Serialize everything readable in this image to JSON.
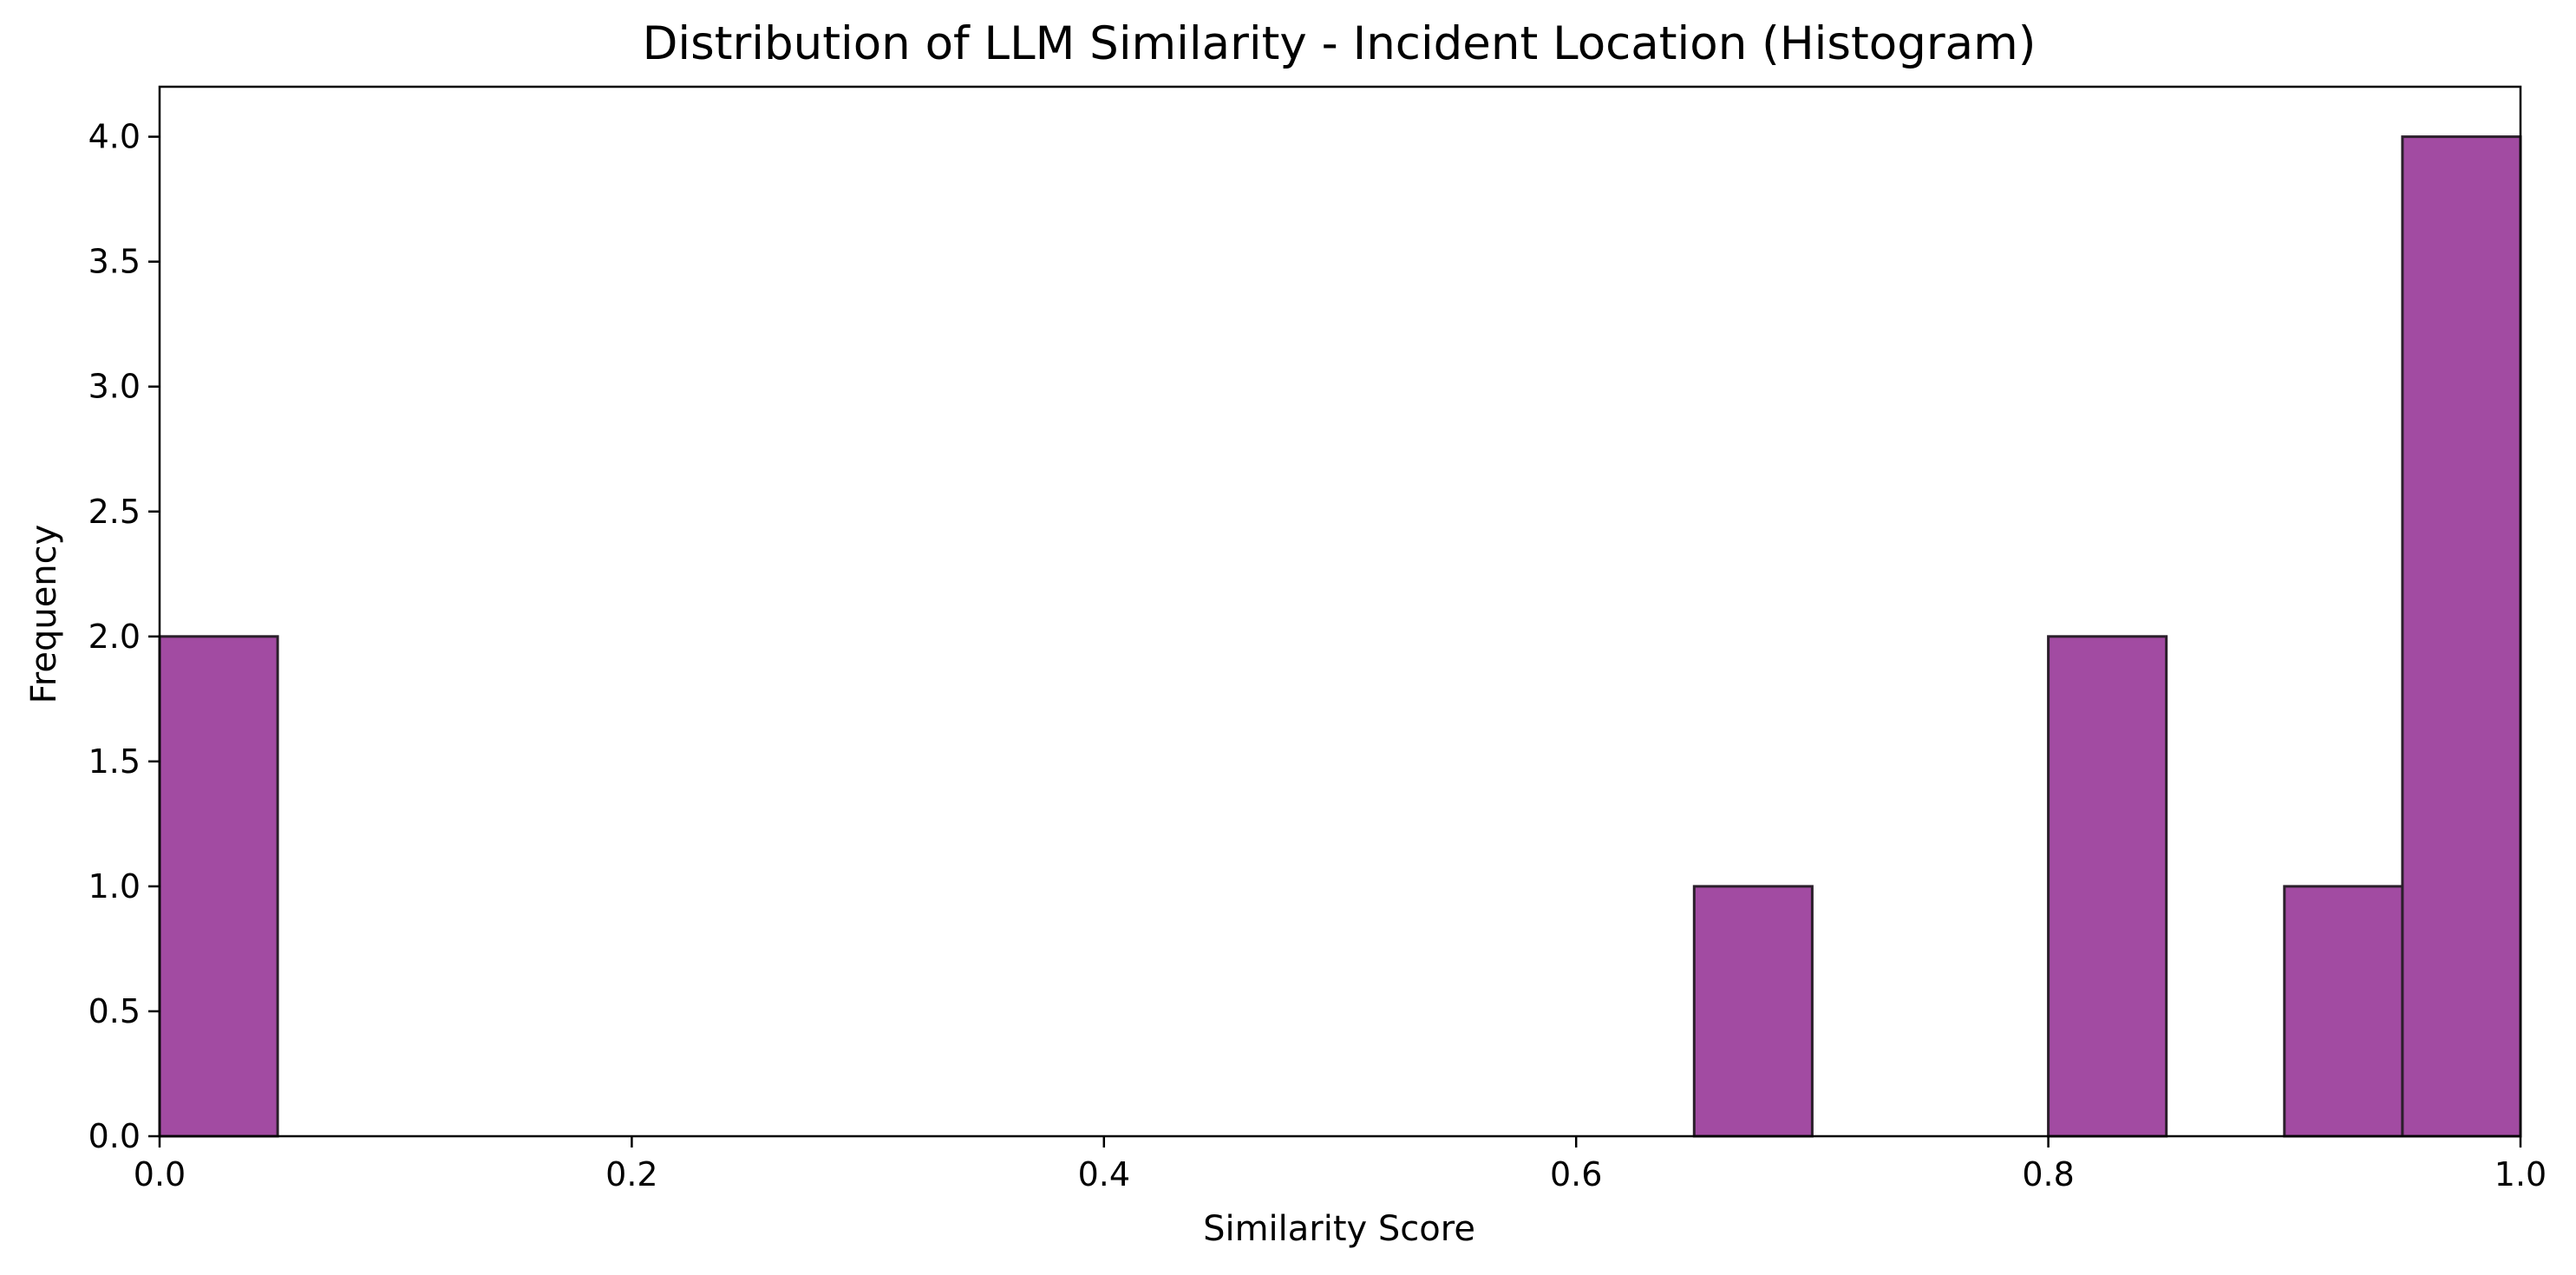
{
  "chart_data": {
    "type": "bar",
    "title": "Distribution of LLM Similarity - Incident Location (Histogram)",
    "xlabel": "Similarity Score",
    "ylabel": "Frequency",
    "xlim": [
      0.0,
      1.0
    ],
    "ylim": [
      0.0,
      4.2
    ],
    "x_ticks": [
      "0.0",
      "0.2",
      "0.4",
      "0.6",
      "0.8",
      "1.0"
    ],
    "y_ticks": [
      "0.0",
      "0.5",
      "1.0",
      "1.5",
      "2.0",
      "2.5",
      "3.0",
      "3.5",
      "4.0"
    ],
    "bin_edges": [
      0.0,
      0.05,
      0.1,
      0.15,
      0.2,
      0.25,
      0.3,
      0.35,
      0.4,
      0.45,
      0.5,
      0.55,
      0.6,
      0.65,
      0.7,
      0.75,
      0.8,
      0.85,
      0.9,
      0.95,
      1.0
    ],
    "values": [
      2,
      0,
      0,
      0,
      0,
      0,
      0,
      0,
      0,
      0,
      0,
      0,
      0,
      1,
      0,
      0,
      2,
      0,
      1,
      4
    ],
    "bar_color": "#a24ba2",
    "edge_color": "#2b1f2b",
    "grid": false,
    "legend": "none"
  }
}
